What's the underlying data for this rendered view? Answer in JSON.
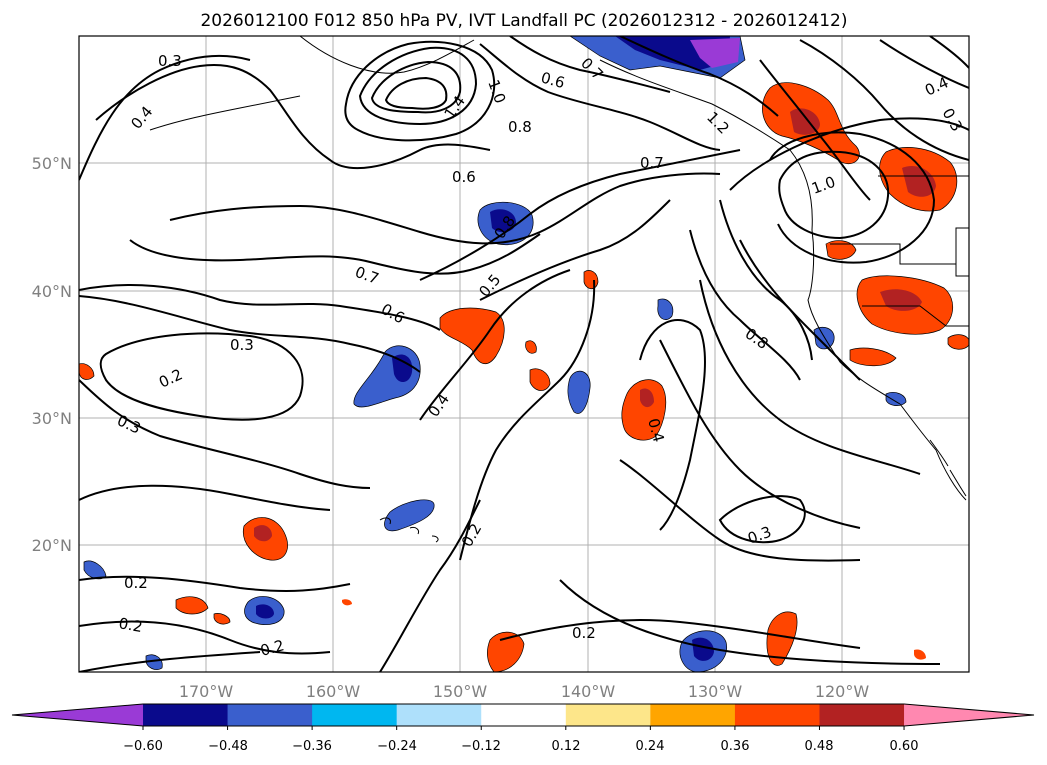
{
  "title": "2026012100 F012 850 hPa PV, IVT Landfall PC (2026012312 - 2026012412)",
  "lat_labels": [
    "50°N",
    "40°N",
    "30°N",
    "20°N"
  ],
  "lon_labels": [
    "170°W",
    "160°W",
    "150°W",
    "140°W",
    "130°W",
    "120°W"
  ],
  "contour_labels": [
    "0.3",
    "0.4",
    "0.2",
    "0.3",
    "0.2",
    "0.2",
    "0.2",
    "0.3",
    "0.6",
    "0.7",
    "0.7",
    "0.6",
    "0.4",
    "0.5",
    "0.8",
    "0.8",
    "1.4",
    "1.0",
    "0.6",
    "0.7",
    "1.2",
    "1.0",
    "0.4",
    "0.3",
    "0.8",
    "0.4",
    "0.2",
    "0.3",
    "0.2"
  ],
  "colorbar": {
    "ticks": [
      "−0.60",
      "−0.48",
      "−0.36",
      "−0.24",
      "−0.12",
      "0.12",
      "0.24",
      "0.36",
      "0.48",
      "0.60"
    ],
    "colors": [
      "#9a3ad6",
      "#0a0a8c",
      "#3a5fcd",
      "#00b7f0",
      "#aee0fb",
      "#ffffff",
      "#fde68a",
      "#ffa500",
      "#ff4500",
      "#b22222",
      "#ff88b0"
    ]
  },
  "chart_data": {
    "type": "map",
    "title": "2026012100 F012 850 hPa PV, IVT Landfall PC (2026012312 - 2026012412)",
    "lat_range": [
      10,
      60
    ],
    "lon_range": [
      -180,
      -110
    ],
    "fill_variable": "IVT Landfall PC",
    "contour_variable": "850 hPa PV",
    "contour_levels": [
      0.2,
      0.3,
      0.4,
      0.5,
      0.6,
      0.7,
      0.8,
      1.0,
      1.2,
      1.4
    ],
    "colorbar_ticks": [
      -0.6,
      -0.48,
      -0.36,
      -0.24,
      -0.12,
      0.12,
      0.24,
      0.36,
      0.48,
      0.6
    ]
  }
}
